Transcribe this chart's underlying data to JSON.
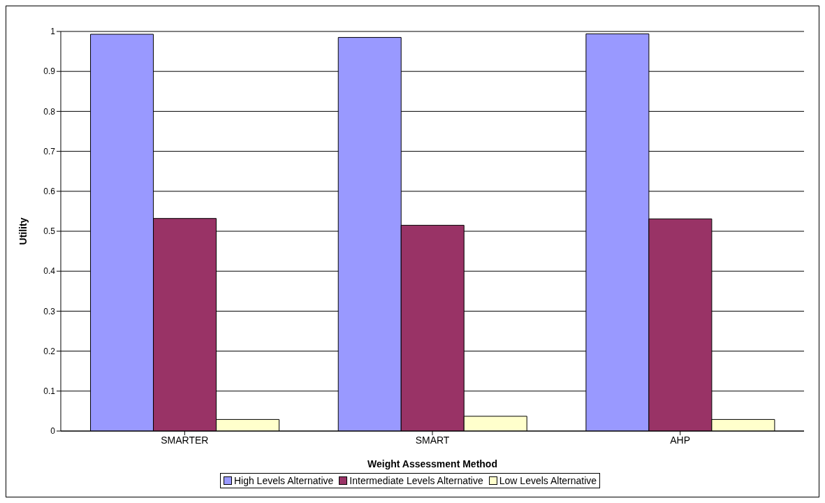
{
  "chart_data": {
    "type": "bar",
    "xlabel": "Weight Assessment Method",
    "ylabel": "Utility",
    "categories": [
      "SMARTER",
      "SMART",
      "AHP"
    ],
    "series": [
      {
        "name": "High Levels Alternative",
        "color": "#9999ff",
        "values": [
          0.993,
          0.985,
          0.994
        ]
      },
      {
        "name": "Intermediate Levels Alternative",
        "color": "#993366",
        "values": [
          0.532,
          0.515,
          0.531
        ]
      },
      {
        "name": "Low Levels Alternative",
        "color": "#ffffcc",
        "values": [
          0.029,
          0.037,
          0.029
        ]
      }
    ],
    "ylim": [
      0,
      1
    ],
    "yticks": [
      0,
      0.1,
      0.2,
      0.3,
      0.4,
      0.5,
      0.6,
      0.7,
      0.8,
      0.9,
      1
    ],
    "grid": "y",
    "legend": "bottom"
  }
}
